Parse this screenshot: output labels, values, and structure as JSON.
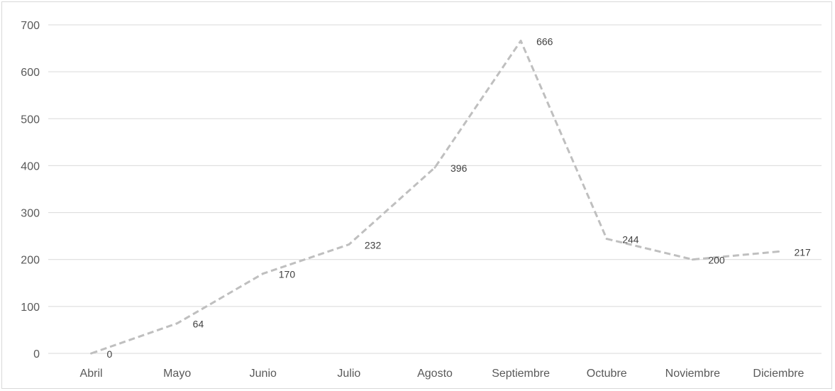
{
  "chart_data": {
    "type": "line",
    "title": "",
    "xlabel": "",
    "ylabel": "",
    "categories": [
      "Abril",
      "Mayo",
      "Junio",
      "Julio",
      "Agosto",
      "Septiembre",
      "Octubre",
      "Noviembre",
      "Diciembre"
    ],
    "series": [
      {
        "values": [
          0,
          64,
          170,
          232,
          396,
          666,
          244,
          200,
          217
        ]
      }
    ],
    "ylim": [
      0,
      700
    ],
    "yticks": [
      0,
      100,
      200,
      300,
      400,
      500,
      600,
      700
    ],
    "grid": true,
    "legend": "none",
    "data_labels": true,
    "line_style": "dashed",
    "line_color": "#bfbfbf",
    "gridline_color": "#d9d9d9"
  }
}
